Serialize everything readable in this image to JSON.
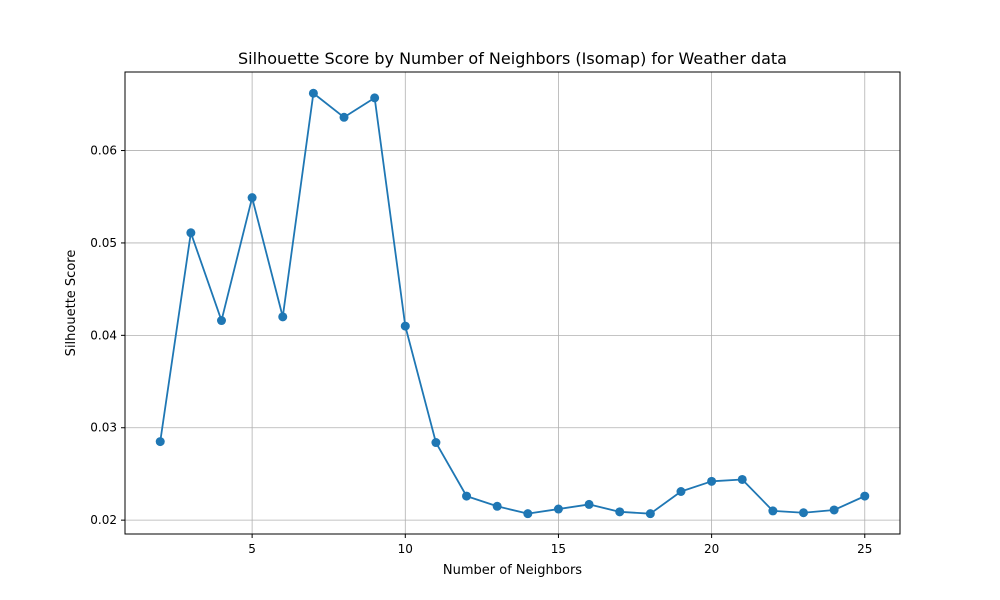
{
  "chart_data": {
    "type": "line",
    "title": "Silhouette Score by Number of Neighbors (Isomap) for Weather data",
    "xlabel": "Number of Neighbors",
    "ylabel": "Silhouette Score",
    "xlim": [
      0.85,
      26.15
    ],
    "ylim": [
      0.0185,
      0.0685
    ],
    "xticks": [
      5,
      10,
      15,
      20,
      25
    ],
    "xtick_labels": [
      "5",
      "10",
      "15",
      "20",
      "25"
    ],
    "yticks": [
      0.02,
      0.03,
      0.04,
      0.05,
      0.06
    ],
    "ytick_labels": [
      "0.02",
      "0.03",
      "0.04",
      "0.05",
      "0.06"
    ],
    "grid": true,
    "series": [
      {
        "color": "#1f77b4",
        "marker": "circle",
        "x": [
          2,
          3,
          4,
          5,
          6,
          7,
          8,
          9,
          10,
          11,
          12,
          13,
          14,
          15,
          16,
          17,
          18,
          19,
          20,
          21,
          22,
          23,
          24,
          25
        ],
        "y": [
          0.0285,
          0.0511,
          0.0416,
          0.0549,
          0.042,
          0.0662,
          0.0636,
          0.0657,
          0.041,
          0.0284,
          0.0226,
          0.0215,
          0.0207,
          0.0212,
          0.0217,
          0.0209,
          0.0207,
          0.0231,
          0.0242,
          0.0244,
          0.021,
          0.0208,
          0.0211,
          0.0226
        ]
      }
    ]
  }
}
